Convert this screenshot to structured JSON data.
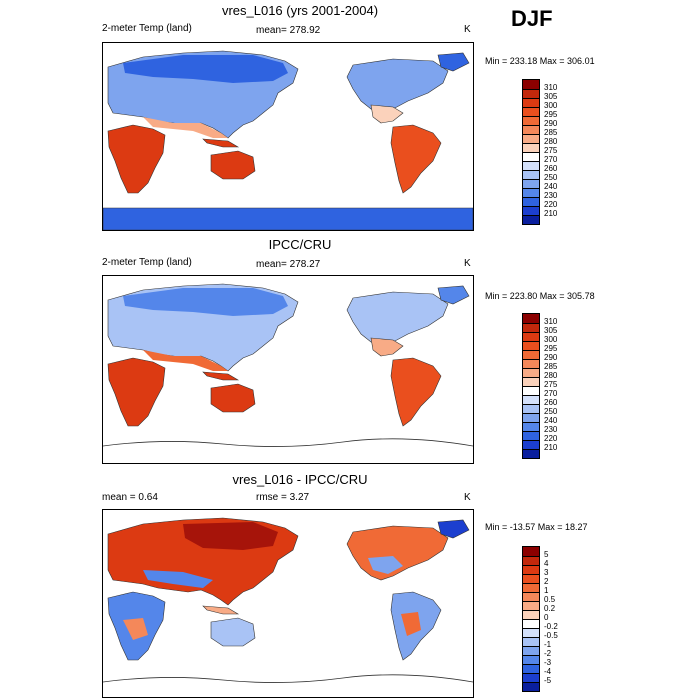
{
  "season": "DJF",
  "panels": [
    {
      "title": "vres_L016 (yrs 2001-2004)",
      "left_label": "2-meter Temp (land)",
      "center_label": "mean= 278.92",
      "units": "K",
      "minmax": "Min = 233.18 Max = 306.01",
      "colorbar": {
        "labels": [
          "310",
          "305",
          "300",
          "295",
          "290",
          "285",
          "280",
          "275",
          "270",
          "260",
          "250",
          "240",
          "230",
          "220",
          "210"
        ],
        "colors": [
          "#8b0000",
          "#c2280c",
          "#dc3a12",
          "#ea4f1e",
          "#f06a36",
          "#f4885a",
          "#f8ab86",
          "#fbd2bb",
          "#ffffff",
          "#d4e1fb",
          "#a9c3f5",
          "#7ea4ee",
          "#5486ea",
          "#2f63e0",
          "#1c3fcf",
          "#0a1f9e"
        ]
      }
    },
    {
      "title": "IPCC/CRU",
      "left_label": "2-meter Temp (land)",
      "center_label": "mean= 278.27",
      "units": "K",
      "minmax": "Min = 223.80 Max = 305.78",
      "colorbar": {
        "labels": [
          "310",
          "305",
          "300",
          "295",
          "290",
          "285",
          "280",
          "275",
          "270",
          "260",
          "250",
          "240",
          "230",
          "220",
          "210"
        ],
        "colors": [
          "#8b0000",
          "#c2280c",
          "#dc3a12",
          "#ea4f1e",
          "#f06a36",
          "#f4885a",
          "#f8ab86",
          "#fbd2bb",
          "#ffffff",
          "#d4e1fb",
          "#a9c3f5",
          "#7ea4ee",
          "#5486ea",
          "#2f63e0",
          "#1c3fcf",
          "#0a1f9e"
        ]
      }
    },
    {
      "title": "vres_L016 - IPCC/CRU",
      "left_label": "mean =   0.64",
      "center_label": "rmse =   3.27",
      "units": "K",
      "minmax": "Min = -13.57 Max =  18.27",
      "colorbar": {
        "labels": [
          "5",
          "4",
          "3",
          "2",
          "1",
          "0.5",
          "0.2",
          "0",
          "-0.2",
          "-0.5",
          "-1",
          "-2",
          "-3",
          "-4",
          "-5"
        ],
        "colors": [
          "#8b0000",
          "#c2280c",
          "#dc3a12",
          "#ea4f1e",
          "#f06a36",
          "#f4885a",
          "#f8ab86",
          "#fbd2bb",
          "#ffffff",
          "#d4e1fb",
          "#a9c3f5",
          "#7ea4ee",
          "#5486ea",
          "#2f63e0",
          "#1c3fcf",
          "#0a1f9e"
        ]
      }
    }
  ]
}
